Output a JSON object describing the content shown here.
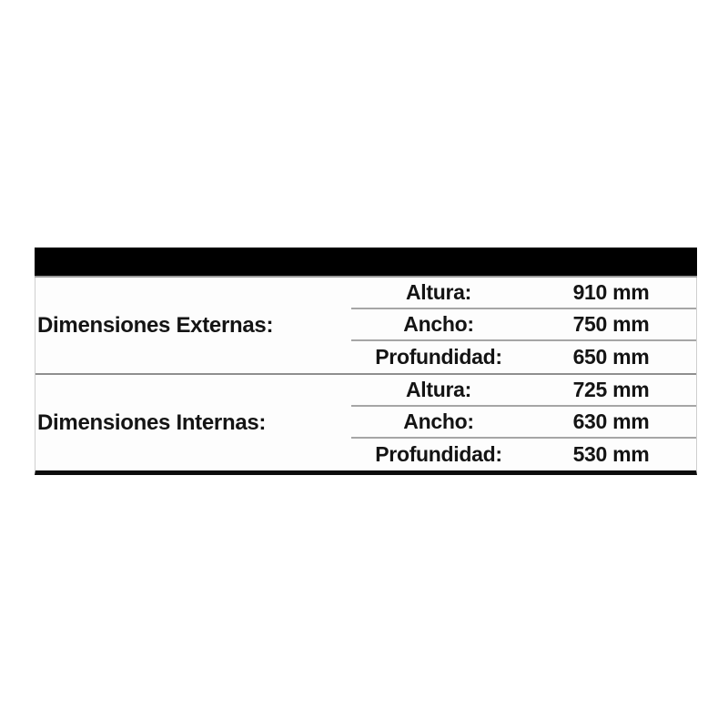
{
  "table": {
    "groups": [
      {
        "label": "Dimensiones Externas:",
        "rows": [
          {
            "label": "Altura:",
            "value": "910 mm"
          },
          {
            "label": "Ancho:",
            "value": "750 mm"
          },
          {
            "label": "Profundidad:",
            "value": "650 mm"
          }
        ]
      },
      {
        "label": "Dimensiones Internas:",
        "rows": [
          {
            "label": "Altura:",
            "value": "725 mm"
          },
          {
            "label": "Ancho:",
            "value": "630 mm"
          },
          {
            "label": "Profundidad:",
            "value": "530 mm"
          }
        ]
      }
    ]
  },
  "colors": {
    "header_bar": "#000000",
    "row_separator": "#a6a6a6",
    "group_separator": "#8f8f8f",
    "side_border": "#cfcfcf",
    "bottom_border": "#0d0d0d",
    "text": "#141414",
    "page_background": "#ffffff"
  }
}
